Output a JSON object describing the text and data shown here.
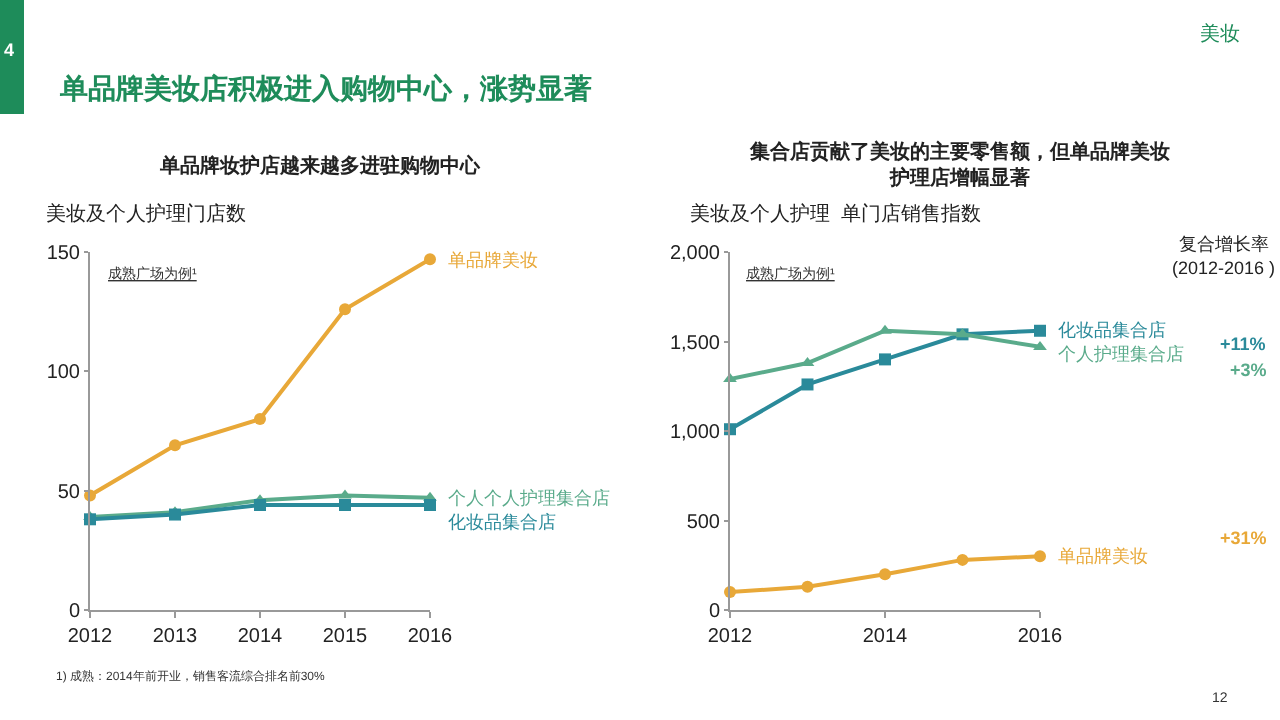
{
  "chart_data": [
    {
      "type": "line",
      "title": "单品牌妆护店越来越多进驻购物中心",
      "ylabel": "美妆及个人护理门店数",
      "x": [
        2012,
        2013,
        2014,
        2015,
        2016
      ],
      "xlim": [
        2012,
        2016
      ],
      "xticks": [
        2012,
        2013,
        2014,
        2015,
        2016
      ],
      "ylim": [
        0,
        150
      ],
      "yticks": [
        0,
        50,
        100,
        150
      ],
      "grid": false,
      "legend": false,
      "series": [
        {
          "name": "单品牌美妆",
          "color": "#e8a838",
          "marker": "circle",
          "values": [
            48,
            69,
            80,
            126,
            147
          ]
        },
        {
          "name": "个人个人护理集合店",
          "color": "#5aab8b",
          "marker": "triangle",
          "values": [
            39,
            41,
            46,
            48,
            47
          ]
        },
        {
          "name": "化妆品集合店",
          "color": "#2a8a9a",
          "marker": "square",
          "values": [
            38,
            40,
            44,
            44,
            44
          ]
        }
      ],
      "annotations": [
        "4",
        "单品牌美妆店积极进入购物中心，涨势显著",
        "美妆",
        "成熟广场为例¹",
        "1) 成熟：2014年前开业，销售客流综合排名前30%",
        "12"
      ]
    },
    {
      "type": "line",
      "title": "集合店贡献了美妆的主要零售额，但单品牌美妆护理店增幅显著",
      "ylabel": "美妆及个人护理  单门店销售指数",
      "x": [
        2012,
        2013,
        2014,
        2015,
        2016
      ],
      "xlim": [
        2012,
        2016
      ],
      "xticks": [
        2012,
        2014,
        2016
      ],
      "ylim": [
        0,
        2000
      ],
      "yticks": [
        {
          "value": 0,
          "label": "0"
        },
        {
          "value": 500,
          "label": "500"
        },
        {
          "value": 1000,
          "label": "1,000"
        },
        {
          "value": 1500,
          "label": "1,500"
        },
        {
          "value": 2000,
          "label": "2,000"
        }
      ],
      "grid": false,
      "legend": false,
      "series": [
        {
          "name": "化妆品集合店",
          "color": "#2a8a9a",
          "marker": "square",
          "values": [
            1010,
            1260,
            1400,
            1540,
            1560
          ]
        },
        {
          "name": "个人护理集合店",
          "color": "#5aab8b",
          "marker": "triangle",
          "values": [
            1290,
            1380,
            1560,
            1540,
            1470
          ]
        },
        {
          "name": "单品牌美妆",
          "color": "#e8a838",
          "marker": "circle",
          "values": [
            100,
            130,
            200,
            280,
            300
          ]
        }
      ],
      "annotations": [
        "成熟广场为例¹",
        "复合增长率\n(2012-2016 )",
        "+11%",
        "+3%",
        "+31%"
      ]
    }
  ]
}
